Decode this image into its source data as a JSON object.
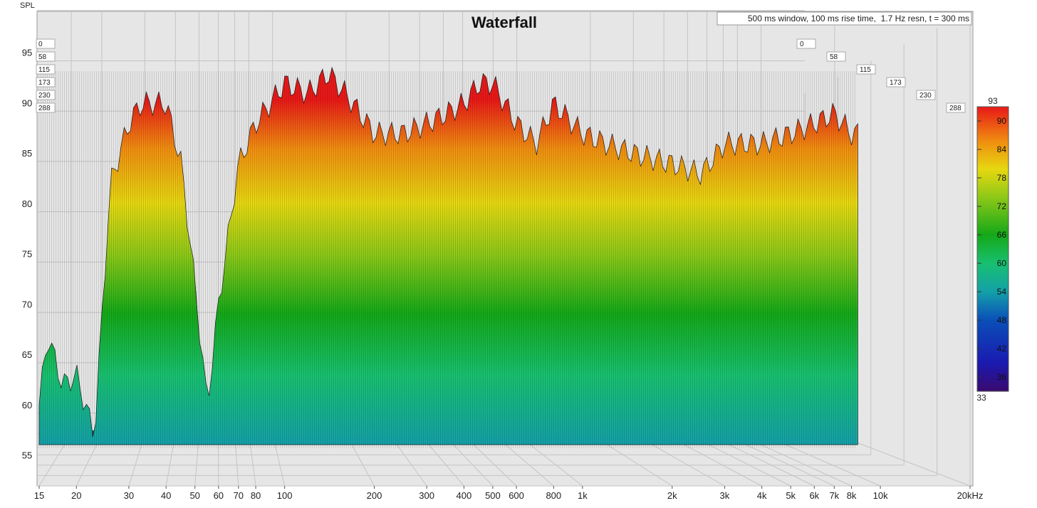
{
  "window": {
    "title": "Waterfall",
    "info": "500 ms window, 100 ms rise time,  1.7 Hz resn, t = 300 ms"
  },
  "chart_data": {
    "type": "waterfall",
    "title": "Waterfall",
    "ylabel": "SPL",
    "xscale": "log",
    "xlim": [
      15,
      20000
    ],
    "ylim": [
      52,
      100
    ],
    "y_ticks": [
      55,
      60,
      65,
      70,
      75,
      80,
      85,
      90,
      95
    ],
    "x_ticks": [
      {
        "value": 15,
        "label": "15"
      },
      {
        "value": 20,
        "label": "20"
      },
      {
        "value": 30,
        "label": "30"
      },
      {
        "value": 40,
        "label": "40"
      },
      {
        "value": 50,
        "label": "50"
      },
      {
        "value": 60,
        "label": "60"
      },
      {
        "value": 70,
        "label": "70"
      },
      {
        "value": 80,
        "label": "80"
      },
      {
        "value": 100,
        "label": "100"
      },
      {
        "value": 200,
        "label": "200"
      },
      {
        "value": 300,
        "label": "300"
      },
      {
        "value": 400,
        "label": "400"
      },
      {
        "value": 500,
        "label": "500"
      },
      {
        "value": 600,
        "label": "600"
      },
      {
        "value": 800,
        "label": "800"
      },
      {
        "value": 1000,
        "label": "1k"
      },
      {
        "value": 2000,
        "label": "2k"
      },
      {
        "value": 3000,
        "label": "3k"
      },
      {
        "value": 4000,
        "label": "4k"
      },
      {
        "value": 5000,
        "label": "5k"
      },
      {
        "value": 6000,
        "label": "6k"
      },
      {
        "value": 7000,
        "label": "7k"
      },
      {
        "value": 8000,
        "label": "8k"
      },
      {
        "value": 10000,
        "label": "10k"
      },
      {
        "value": 20000,
        "label": "20kHz"
      }
    ],
    "time_ticks_ms": [
      "0",
      "58",
      "115",
      "173",
      "230",
      "288"
    ],
    "colorbar": {
      "min": 33,
      "max": 93,
      "ticks": [
        36,
        42,
        48,
        54,
        60,
        66,
        72,
        78,
        84,
        90
      ],
      "colors": [
        "#3a0a6e",
        "#1a1ab0",
        "#0a4fb8",
        "#14a0a8",
        "#18c070",
        "#14a818",
        "#8cc818",
        "#e6d810",
        "#f08c10",
        "#e81818"
      ]
    },
    "front_slice_spl": {
      "freq_hz": [
        15,
        16,
        18,
        20,
        23,
        26,
        30,
        33,
        36,
        40,
        45,
        50,
        55,
        60,
        70,
        80,
        100,
        120,
        140,
        160,
        200,
        250,
        300,
        350,
        400,
        450,
        500,
        600,
        700,
        800,
        1000,
        1200,
        1500,
        2000,
        2500,
        3000,
        4000,
        5000,
        6000,
        7000,
        8000
      ],
      "spl_db": [
        60,
        67,
        62,
        63,
        57,
        82,
        88,
        90,
        90,
        90,
        84,
        72,
        60,
        70,
        84,
        88,
        92,
        91,
        93,
        91,
        87,
        87,
        88,
        89,
        90,
        92,
        92,
        88,
        86,
        90,
        87,
        86,
        85,
        84,
        83,
        86,
        86,
        87,
        88,
        89,
        87
      ]
    }
  }
}
